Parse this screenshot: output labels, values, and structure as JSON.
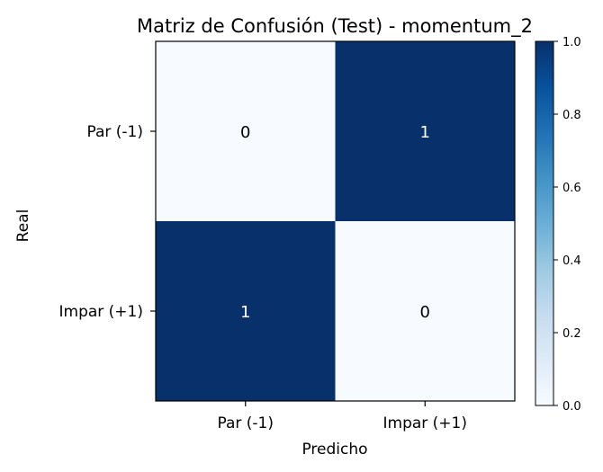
{
  "chart_data": {
    "type": "heatmap",
    "title": "Matriz de Confusión (Test) - momentum_2",
    "xlabel": "Predicho",
    "ylabel": "Real",
    "x_categories": [
      "Par (-1)",
      "Impar (+1)"
    ],
    "y_categories": [
      "Par (-1)",
      "Impar (+1)"
    ],
    "values": [
      [
        0,
        1
      ],
      [
        1,
        0
      ]
    ],
    "colormap": "Blues",
    "color_low": "#f7fbff",
    "color_high": "#08306b",
    "colorbar": {
      "range": [
        0.0,
        1.0
      ],
      "ticks": [
        "0.0",
        "0.2",
        "0.4",
        "0.6",
        "0.8",
        "1.0"
      ]
    }
  }
}
